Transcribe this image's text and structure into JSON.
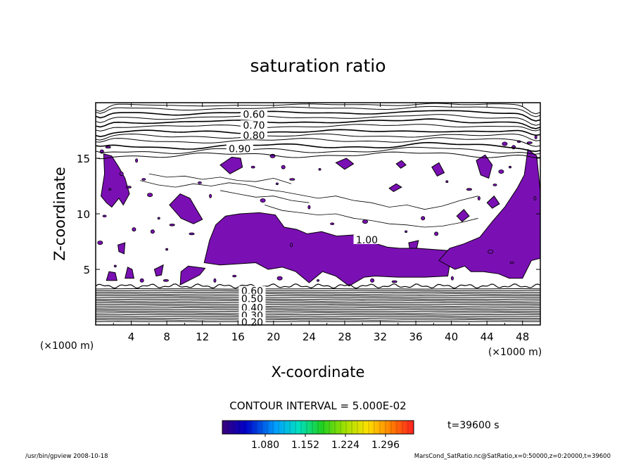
{
  "chart_data": {
    "type": "contour",
    "title": "saturation ratio",
    "xlabel": "X-coordinate",
    "ylabel": "Z-coordinate",
    "x_unit": "(×1000 m)",
    "y_unit": "(×1000 m)",
    "xlim": [
      0,
      50
    ],
    "ylim": [
      0,
      20
    ],
    "x_ticks": [
      4,
      8,
      12,
      16,
      20,
      24,
      28,
      32,
      36,
      40,
      44,
      48
    ],
    "y_ticks": [
      5,
      10,
      15
    ],
    "contour_labels": [
      {
        "text": "0.60",
        "x": 17.8,
        "z": 18.9
      },
      {
        "text": "0.70",
        "x": 17.8,
        "z": 17.9
      },
      {
        "text": "0.80",
        "x": 17.8,
        "z": 17.0
      },
      {
        "text": "0.90",
        "x": 16.2,
        "z": 15.8
      },
      {
        "text": "1.00",
        "x": 30.5,
        "z": 7.6
      },
      {
        "text": "0.60",
        "x": 17.6,
        "z": 3.0
      },
      {
        "text": "0.50",
        "x": 17.6,
        "z": 2.3
      },
      {
        "text": "0.40",
        "x": 17.6,
        "z": 1.5
      },
      {
        "text": "0.30",
        "x": 17.6,
        "z": 0.8
      },
      {
        "text": "0.20",
        "x": 17.6,
        "z": 0.2
      }
    ],
    "contour_interval_text": "CONTOUR INTERVAL = 5.000E-02",
    "colorbar": {
      "tick_labels": [
        "1.080",
        "1.152",
        "1.224",
        "1.296"
      ],
      "shaded_color": "#7a10b4"
    },
    "time_label": "t=39600 s"
  },
  "footer": {
    "left": "/usr/bin/gpview   2008-10-18",
    "right": "MarsCond_SatRatio.nc@SatRatio,x=0:50000,z=0:20000,t=39600"
  }
}
